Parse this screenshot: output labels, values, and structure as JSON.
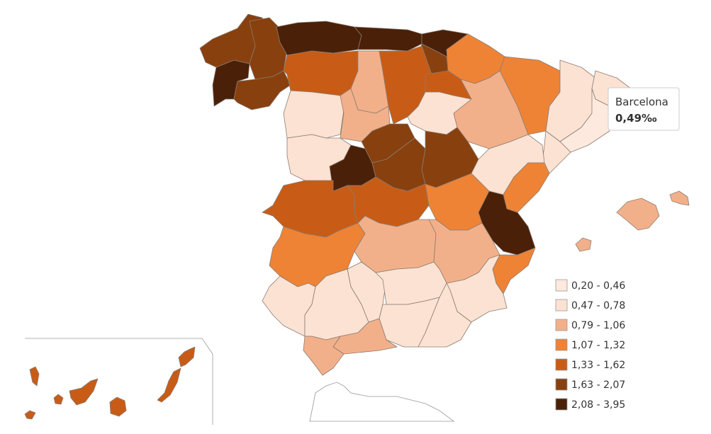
{
  "legend": {
    "items": [
      {
        "label": "0,20 - 0,46",
        "color": "#fde9dd"
      },
      {
        "label": "0,47 - 0,78",
        "color": "#fbe2d2"
      },
      {
        "label": "0,79 - 1,06",
        "color": "#f2b08a"
      },
      {
        "label": "1,07 - 1,32",
        "color": "#ee8336"
      },
      {
        "label": "1,33 - 1,62",
        "color": "#c85c16"
      },
      {
        "label": "1,63 - 2,07",
        "color": "#88400e"
      },
      {
        "label": "2,08 - 3,95",
        "color": "#4a2008"
      }
    ]
  },
  "tooltip": {
    "name": "Barcelona",
    "value": "0,49‰"
  }
}
